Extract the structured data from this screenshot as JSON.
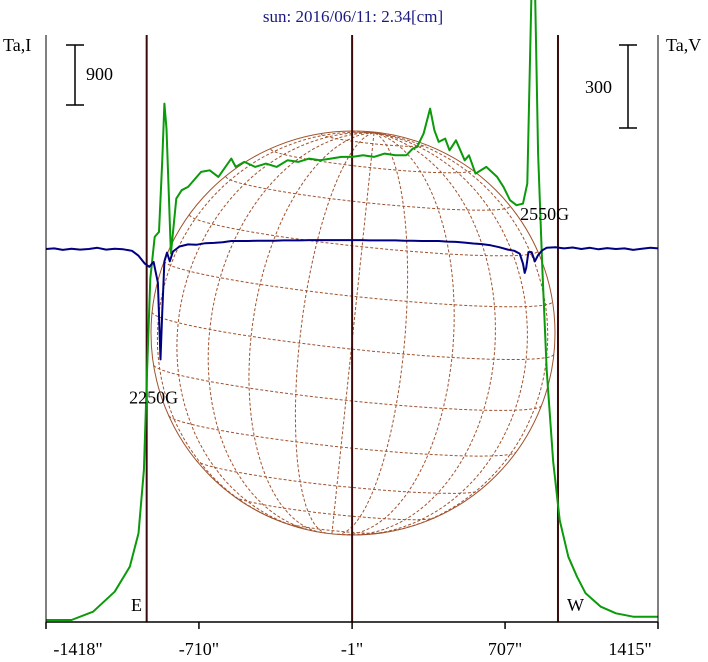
{
  "title": "sun: 2016/06/11: 2.34[cm]",
  "left_axis_label": "Ta,I",
  "right_axis_label": "Ta,V",
  "scale_left": "900",
  "scale_right": "300",
  "east_label": "E",
  "west_label": "W",
  "colors": {
    "title": "#1a1a80",
    "intensity": "#0a9a0a",
    "polarization": "#000080",
    "grid": "#a0522d",
    "limb_lines": "#3a0a0a",
    "axis": "#000000"
  },
  "chart_data": {
    "type": "line",
    "title": "sun: 2016/06/11: 2.34[cm]",
    "xlabel": "",
    "ylabel_left": "Ta,I",
    "ylabel_right": "Ta,V",
    "x_ticks": [
      "-1418\"",
      "-710\"",
      "-1\"",
      "707\"",
      "1415\""
    ],
    "x_tick_values": [
      -1418,
      -710,
      -1,
      707,
      1415
    ],
    "xlim": [
      -1418,
      1415
    ],
    "ylim_intensity": [
      0,
      3500
    ],
    "ylim_polarization": [
      -300,
      900
    ],
    "vertical_lines_arcsec": [
      -952,
      -1,
      952
    ],
    "series": [
      {
        "axis": "left",
        "points": [
          [
            -1418,
            0
          ],
          [
            -1300,
            0
          ],
          [
            -1200,
            50
          ],
          [
            -1100,
            170
          ],
          [
            -1030,
            320
          ],
          [
            -990,
            520
          ],
          [
            -965,
            900
          ],
          [
            -950,
            1500
          ],
          [
            -935,
            2050
          ],
          [
            -915,
            2300
          ],
          [
            -895,
            2330
          ],
          [
            -880,
            2750
          ],
          [
            -870,
            3100
          ],
          [
            -860,
            2950
          ],
          [
            -840,
            2200
          ],
          [
            -815,
            2530
          ],
          [
            -790,
            2580
          ],
          [
            -760,
            2600
          ],
          [
            -700,
            2690
          ],
          [
            -660,
            2700
          ],
          [
            -620,
            2660
          ],
          [
            -560,
            2770
          ],
          [
            -540,
            2720
          ],
          [
            -500,
            2750
          ],
          [
            -450,
            2720
          ],
          [
            -400,
            2740
          ],
          [
            -350,
            2720
          ],
          [
            -300,
            2760
          ],
          [
            -250,
            2750
          ],
          [
            -200,
            2770
          ],
          [
            -150,
            2760
          ],
          [
            -100,
            2770
          ],
          [
            -50,
            2780
          ],
          [
            0,
            2780
          ],
          [
            50,
            2790
          ],
          [
            100,
            2780
          ],
          [
            150,
            2800
          ],
          [
            200,
            2790
          ],
          [
            250,
            2790
          ],
          [
            280,
            2830
          ],
          [
            300,
            2840
          ],
          [
            330,
            2920
          ],
          [
            360,
            3070
          ],
          [
            380,
            2940
          ],
          [
            400,
            2870
          ],
          [
            430,
            2890
          ],
          [
            450,
            2820
          ],
          [
            480,
            2880
          ],
          [
            520,
            2760
          ],
          [
            540,
            2790
          ],
          [
            570,
            2680
          ],
          [
            620,
            2720
          ],
          [
            670,
            2660
          ],
          [
            700,
            2600
          ],
          [
            730,
            2520
          ],
          [
            760,
            2490
          ],
          [
            790,
            2500
          ],
          [
            810,
            2620
          ],
          [
            830,
            3800
          ],
          [
            845,
            3830
          ],
          [
            860,
            2800
          ],
          [
            880,
            2100
          ],
          [
            900,
            1500
          ],
          [
            930,
            950
          ],
          [
            960,
            600
          ],
          [
            1000,
            380
          ],
          [
            1040,
            260
          ],
          [
            1080,
            160
          ],
          [
            1150,
            80
          ],
          [
            1220,
            40
          ],
          [
            1300,
            20
          ],
          [
            1415,
            20
          ]
        ]
      },
      {
        "axis": "right",
        "points": [
          [
            -1418,
            0
          ],
          [
            -1380,
            2
          ],
          [
            -1340,
            -3
          ],
          [
            -1300,
            1
          ],
          [
            -1260,
            -2
          ],
          [
            -1220,
            0
          ],
          [
            -1180,
            4
          ],
          [
            -1140,
            -2
          ],
          [
            -1100,
            1
          ],
          [
            -1060,
            -1
          ],
          [
            -1020,
            -6
          ],
          [
            -990,
            -22
          ],
          [
            -960,
            -48
          ],
          [
            -940,
            -58
          ],
          [
            -920,
            -42
          ],
          [
            -900,
            -110
          ],
          [
            -888,
            -360
          ],
          [
            -880,
            -210
          ],
          [
            -870,
            -40
          ],
          [
            -858,
            -12
          ],
          [
            -845,
            -40
          ],
          [
            -830,
            -8
          ],
          [
            -800,
            8
          ],
          [
            -760,
            15
          ],
          [
            -720,
            14
          ],
          [
            -680,
            19
          ],
          [
            -640,
            20
          ],
          [
            -600,
            22
          ],
          [
            -560,
            26
          ],
          [
            -520,
            26
          ],
          [
            -480,
            26
          ],
          [
            -440,
            27
          ],
          [
            -400,
            27
          ],
          [
            -360,
            27
          ],
          [
            -320,
            28
          ],
          [
            -280,
            28
          ],
          [
            -240,
            28
          ],
          [
            -200,
            29
          ],
          [
            -160,
            29
          ],
          [
            -120,
            29
          ],
          [
            -80,
            29
          ],
          [
            -40,
            29
          ],
          [
            0,
            29
          ],
          [
            40,
            29
          ],
          [
            80,
            28
          ],
          [
            120,
            28
          ],
          [
            160,
            28
          ],
          [
            200,
            28
          ],
          [
            240,
            27
          ],
          [
            280,
            27
          ],
          [
            320,
            26
          ],
          [
            360,
            26
          ],
          [
            400,
            26
          ],
          [
            440,
            24
          ],
          [
            480,
            23
          ],
          [
            520,
            21
          ],
          [
            560,
            18
          ],
          [
            600,
            16
          ],
          [
            640,
            12
          ],
          [
            680,
            6
          ],
          [
            720,
            -2
          ],
          [
            750,
            -6
          ],
          [
            775,
            -15
          ],
          [
            790,
            -48
          ],
          [
            798,
            -78
          ],
          [
            805,
            -62
          ],
          [
            815,
            -10
          ],
          [
            830,
            -10
          ],
          [
            845,
            -40
          ],
          [
            860,
            -20
          ],
          [
            880,
            -4
          ],
          [
            900,
            4
          ],
          [
            940,
            6
          ],
          [
            980,
            2
          ],
          [
            1020,
            5
          ],
          [
            1060,
            0
          ],
          [
            1100,
            4
          ],
          [
            1140,
            -1
          ],
          [
            1180,
            3
          ],
          [
            1220,
            0
          ],
          [
            1260,
            2
          ],
          [
            1300,
            -3
          ],
          [
            1340,
            1
          ],
          [
            1380,
            4
          ],
          [
            1415,
            2
          ]
        ]
      }
    ],
    "annotations": [
      {
        "text": "2250G",
        "x": -920,
        "y_intensity": 1300
      },
      {
        "text": "2550G",
        "x": 890,
        "y_intensity": 2400
      }
    ],
    "grid": false,
    "legend": "none"
  }
}
